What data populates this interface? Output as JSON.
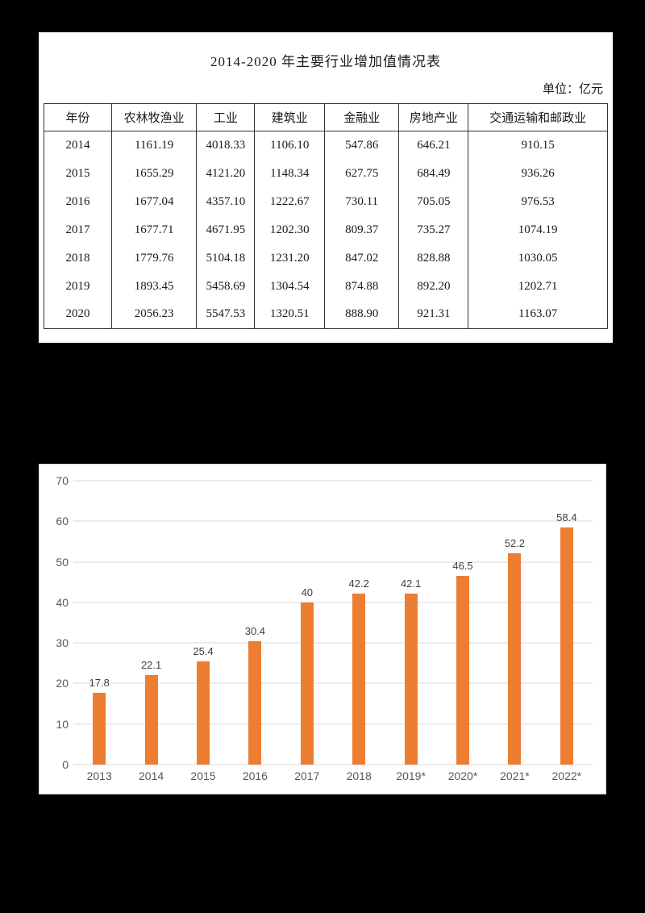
{
  "page": {
    "background": "#000000",
    "panel_background": "#ffffff"
  },
  "chart_data": [
    {
      "type": "table",
      "title": "2014-2020 年主要行业增加值情况表",
      "unit": "单位：亿元",
      "columns": [
        "年份",
        "农林牧渔业",
        "工业",
        "建筑业",
        "金融业",
        "房地产业",
        "交通运输和邮政业"
      ],
      "rows": [
        [
          "2014",
          "1161.19",
          "4018.33",
          "1106.10",
          "547.86",
          "646.21",
          "910.15"
        ],
        [
          "2015",
          "1655.29",
          "4121.20",
          "1148.34",
          "627.75",
          "684.49",
          "936.26"
        ],
        [
          "2016",
          "1677.04",
          "4357.10",
          "1222.67",
          "730.11",
          "705.05",
          "976.53"
        ],
        [
          "2017",
          "1677.71",
          "4671.95",
          "1202.30",
          "809.37",
          "735.27",
          "1074.19"
        ],
        [
          "2018",
          "1779.76",
          "5104.18",
          "1231.20",
          "847.02",
          "828.88",
          "1030.05"
        ],
        [
          "2019",
          "1893.45",
          "5458.69",
          "1304.54",
          "874.88",
          "892.20",
          "1202.71"
        ],
        [
          "2020",
          "2056.23",
          "5547.53",
          "1320.51",
          "888.90",
          "921.31",
          "1163.07"
        ]
      ],
      "column_widths_pct": [
        12.0,
        15.1,
        10.3,
        12.4,
        13.2,
        12.3,
        24.7
      ]
    },
    {
      "type": "bar",
      "title": "",
      "xlabel": "",
      "ylabel": "",
      "categories": [
        "2013",
        "2014",
        "2015",
        "2016",
        "2017",
        "2018",
        "2019*",
        "2020*",
        "2021*",
        "2022*"
      ],
      "values": [
        17.8,
        22.1,
        25.4,
        30.4,
        40,
        42.2,
        42.1,
        46.5,
        52.2,
        58.4
      ],
      "ylim": [
        0,
        70
      ],
      "ytick_step": 10,
      "grid": true,
      "legend": "none",
      "bar_color": "#ED7D31",
      "grid_color": "#D9D9D9",
      "axis_label_color": "#595959",
      "data_label_color": "#404040"
    }
  ]
}
